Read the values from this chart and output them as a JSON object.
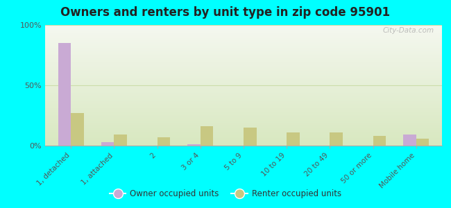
{
  "title": "Owners and renters by unit type in zip code 95901",
  "categories": [
    "1, detached",
    "1, attached",
    "2",
    "3 or 4",
    "5 to 9",
    "10 to 19",
    "20 to 49",
    "50 or more",
    "Mobile home"
  ],
  "owner_values": [
    85,
    3,
    0,
    1,
    0,
    0,
    0,
    0,
    9
  ],
  "renter_values": [
    27,
    9,
    7,
    16,
    15,
    11,
    11,
    8,
    6
  ],
  "owner_color": "#c9aad4",
  "renter_color": "#c8c882",
  "background_color": "#00ffff",
  "grad_top": "#f5f8f0",
  "grad_bottom": "#d8e8c0",
  "ylim": [
    0,
    100
  ],
  "yticks": [
    0,
    50,
    100
  ],
  "ytick_labels": [
    "0%",
    "50%",
    "100%"
  ],
  "watermark": "City-Data.com",
  "legend_owner": "Owner occupied units",
  "legend_renter": "Renter occupied units",
  "bar_width": 0.3
}
